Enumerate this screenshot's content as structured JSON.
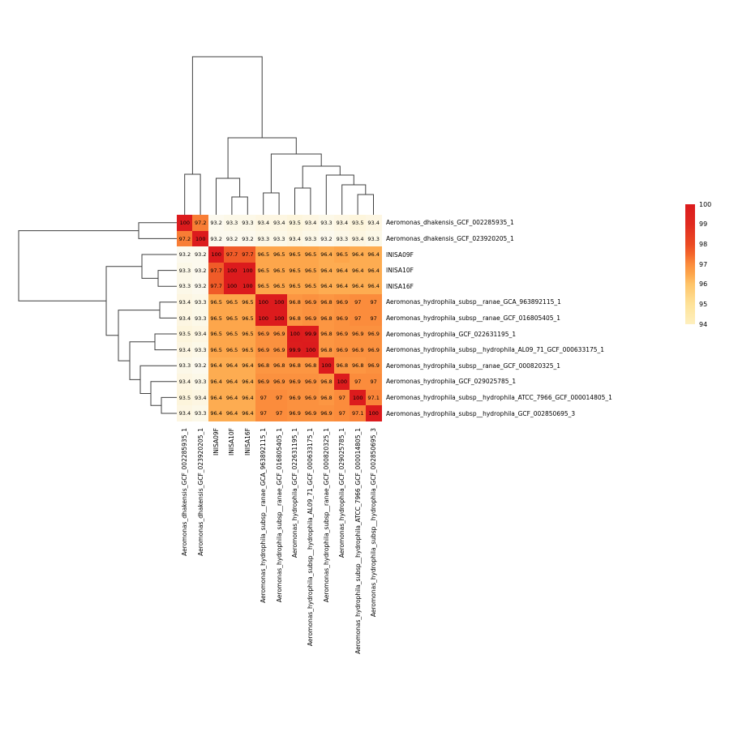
{
  "chart_data": {
    "type": "heatmap",
    "title": "",
    "labels": [
      "Aeromonas_dhakensis_GCF_002285935_1",
      "Aeromonas_dhakensis_GCF_023920205_1",
      "INISA09F",
      "INISA10F",
      "INISA16F",
      "Aeromonas_hydrophila_subsp__ranae_GCA_963892115_1",
      "Aeromonas_hydrophila_subsp__ranae_GCF_016805405_1",
      "Aeromonas_hydrophila_GCF_022631195_1",
      "Aeromonas_hydrophila_subsp__hydrophila_AL09_71_GCF_000633175_1",
      "Aeromonas_hydrophila_subsp__ranae_GCF_000820325_1",
      "Aeromonas_hydrophila_GCF_029025785_1",
      "Aeromonas_hydrophila_subsp__hydrophila_ATCC_7966_GCF_000014805_1",
      "Aeromonas_hydrophila_subsp__hydrophila_GCF_002850695_3"
    ],
    "values": [
      [
        "100",
        "97.2",
        "93.2",
        "93.3",
        "93.3",
        "93.4",
        "93.4",
        "93.5",
        "93.4",
        "93.3",
        "93.4",
        "93.5",
        "93.4"
      ],
      [
        "97.2",
        "100",
        "93.2",
        "93.2",
        "93.2",
        "93.3",
        "93.3",
        "93.4",
        "93.3",
        "93.2",
        "93.3",
        "93.4",
        "93.3"
      ],
      [
        "93.2",
        "93.2",
        "100",
        "97.7",
        "97.7",
        "96.5",
        "96.5",
        "96.5",
        "96.5",
        "96.4",
        "96.5",
        "96.4",
        "96.4"
      ],
      [
        "93.3",
        "93.2",
        "97.7",
        "100",
        "100",
        "96.5",
        "96.5",
        "96.5",
        "96.5",
        "96.4",
        "96.4",
        "96.4",
        "96.4"
      ],
      [
        "93.3",
        "93.2",
        "97.7",
        "100",
        "100",
        "96.5",
        "96.5",
        "96.5",
        "96.5",
        "96.4",
        "96.4",
        "96.4",
        "96.4"
      ],
      [
        "93.4",
        "93.3",
        "96.5",
        "96.5",
        "96.5",
        "100",
        "100",
        "96.8",
        "96.9",
        "96.8",
        "96.9",
        "97",
        "97"
      ],
      [
        "93.4",
        "93.3",
        "96.5",
        "96.5",
        "96.5",
        "100",
        "100",
        "96.8",
        "96.9",
        "96.8",
        "96.9",
        "97",
        "97"
      ],
      [
        "93.5",
        "93.4",
        "96.5",
        "96.5",
        "96.5",
        "96.9",
        "96.9",
        "100",
        "99.9",
        "96.8",
        "96.9",
        "96.9",
        "96.9"
      ],
      [
        "93.4",
        "93.3",
        "96.5",
        "96.5",
        "96.5",
        "96.9",
        "96.9",
        "99.9",
        "100",
        "96.8",
        "96.9",
        "96.9",
        "96.9"
      ],
      [
        "93.3",
        "93.2",
        "96.4",
        "96.4",
        "96.4",
        "96.8",
        "96.8",
        "96.8",
        "96.8",
        "100",
        "96.8",
        "96.8",
        "96.9"
      ],
      [
        "93.4",
        "93.3",
        "96.4",
        "96.4",
        "96.4",
        "96.9",
        "96.9",
        "96.9",
        "96.9",
        "96.8",
        "100",
        "97",
        "97"
      ],
      [
        "93.5",
        "93.4",
        "96.4",
        "96.4",
        "96.4",
        "97",
        "97",
        "96.9",
        "96.9",
        "96.8",
        "97",
        "100",
        "97.1"
      ],
      [
        "93.4",
        "93.3",
        "96.4",
        "96.4",
        "96.4",
        "97",
        "97",
        "96.9",
        "96.9",
        "96.9",
        "97",
        "97.1",
        "100"
      ]
    ],
    "legend_ticks": [
      "100",
      "99",
      "98",
      "97",
      "96",
      "95",
      "94"
    ],
    "colorscale": [
      [
        93.2,
        "#fcf9ee"
      ],
      [
        94.0,
        "#feefbe"
      ],
      [
        95.0,
        "#fee298"
      ],
      [
        96.0,
        "#fec469"
      ],
      [
        96.5,
        "#fda64b"
      ],
      [
        97.0,
        "#fb8c3c"
      ],
      [
        97.5,
        "#f4662b"
      ],
      [
        98.0,
        "#eb4a23"
      ],
      [
        99.0,
        "#e02b20"
      ],
      [
        100.0,
        "#dc1b1d"
      ]
    ],
    "col_dendrogram": [
      195,
      [
        50,
        0,
        1
      ],
      [
        95,
        [
          45,
          2,
          [
            22,
            3,
            4
          ]
        ],
        [
          75,
          [
            27,
            5,
            6
          ],
          [
            60,
            [
              33,
              7,
              8
            ],
            [
              49,
              9,
              [
                37,
                10,
                [
                  25,
                  11,
                  12
                ]
              ]
            ]
          ]
        ]
      ]
    ],
    "row_dendrogram": [
      195,
      [
        47,
        0,
        1
      ],
      [
        87,
        [
          43,
          2,
          [
            23,
            3,
            4
          ]
        ],
        [
          72,
          [
            21,
            5,
            6
          ],
          [
            58,
            [
              27,
              7,
              8
            ],
            [
              45,
              9,
              [
                32,
                10,
                [
                  19,
                  11,
                  12
                ]
              ]
            ]
          ]
        ]
      ]
    ]
  }
}
